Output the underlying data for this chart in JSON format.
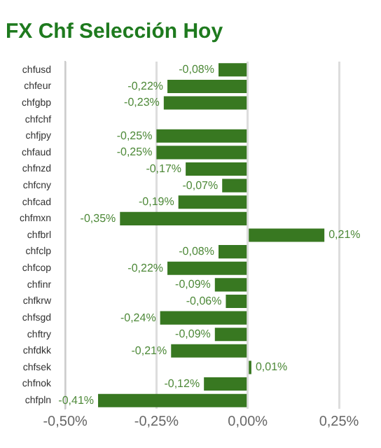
{
  "chart_data": {
    "type": "bar",
    "orientation": "horizontal",
    "title": "FX Chf Selección Hoy",
    "categories": [
      "chfusd",
      "chfeur",
      "chfgbp",
      "chfchf",
      "chfjpy",
      "chfaud",
      "chfnzd",
      "chfcny",
      "chfcad",
      "chfmxn",
      "chfbrl",
      "chfclp",
      "chfcop",
      "chfinr",
      "chfkrw",
      "chfsgd",
      "chftry",
      "chfdkk",
      "chfsek",
      "chfnok",
      "chfpln"
    ],
    "values": [
      -0.08,
      -0.22,
      -0.23,
      null,
      -0.25,
      -0.25,
      -0.17,
      -0.07,
      -0.19,
      -0.35,
      0.21,
      -0.08,
      -0.22,
      -0.09,
      -0.06,
      -0.24,
      -0.09,
      -0.21,
      0.01,
      -0.12,
      -0.41
    ],
    "value_labels": [
      "-0,08%",
      "-0,22%",
      "-0,23%",
      null,
      "-0,25%",
      "-0,25%",
      "-0,17%",
      "-0,07%",
      "-0,19%",
      "-0,35%",
      "0,21%",
      "-0,08%",
      "-0,22%",
      "-0,09%",
      "-0,06%",
      "-0,24%",
      "-0,09%",
      "-0,21%",
      "0,01%",
      "-0,12%",
      "-0,41%"
    ],
    "color": "#387821",
    "xlim": [
      -0.5,
      0.25
    ],
    "xticks": [
      {
        "value": -0.5,
        "label": "-0,50%"
      },
      {
        "value": -0.25,
        "label": "-0,25%"
      },
      {
        "value": 0,
        "label": "0,00%"
      },
      {
        "value": 0.25,
        "label": "0,25%"
      }
    ],
    "grid": "x"
  }
}
